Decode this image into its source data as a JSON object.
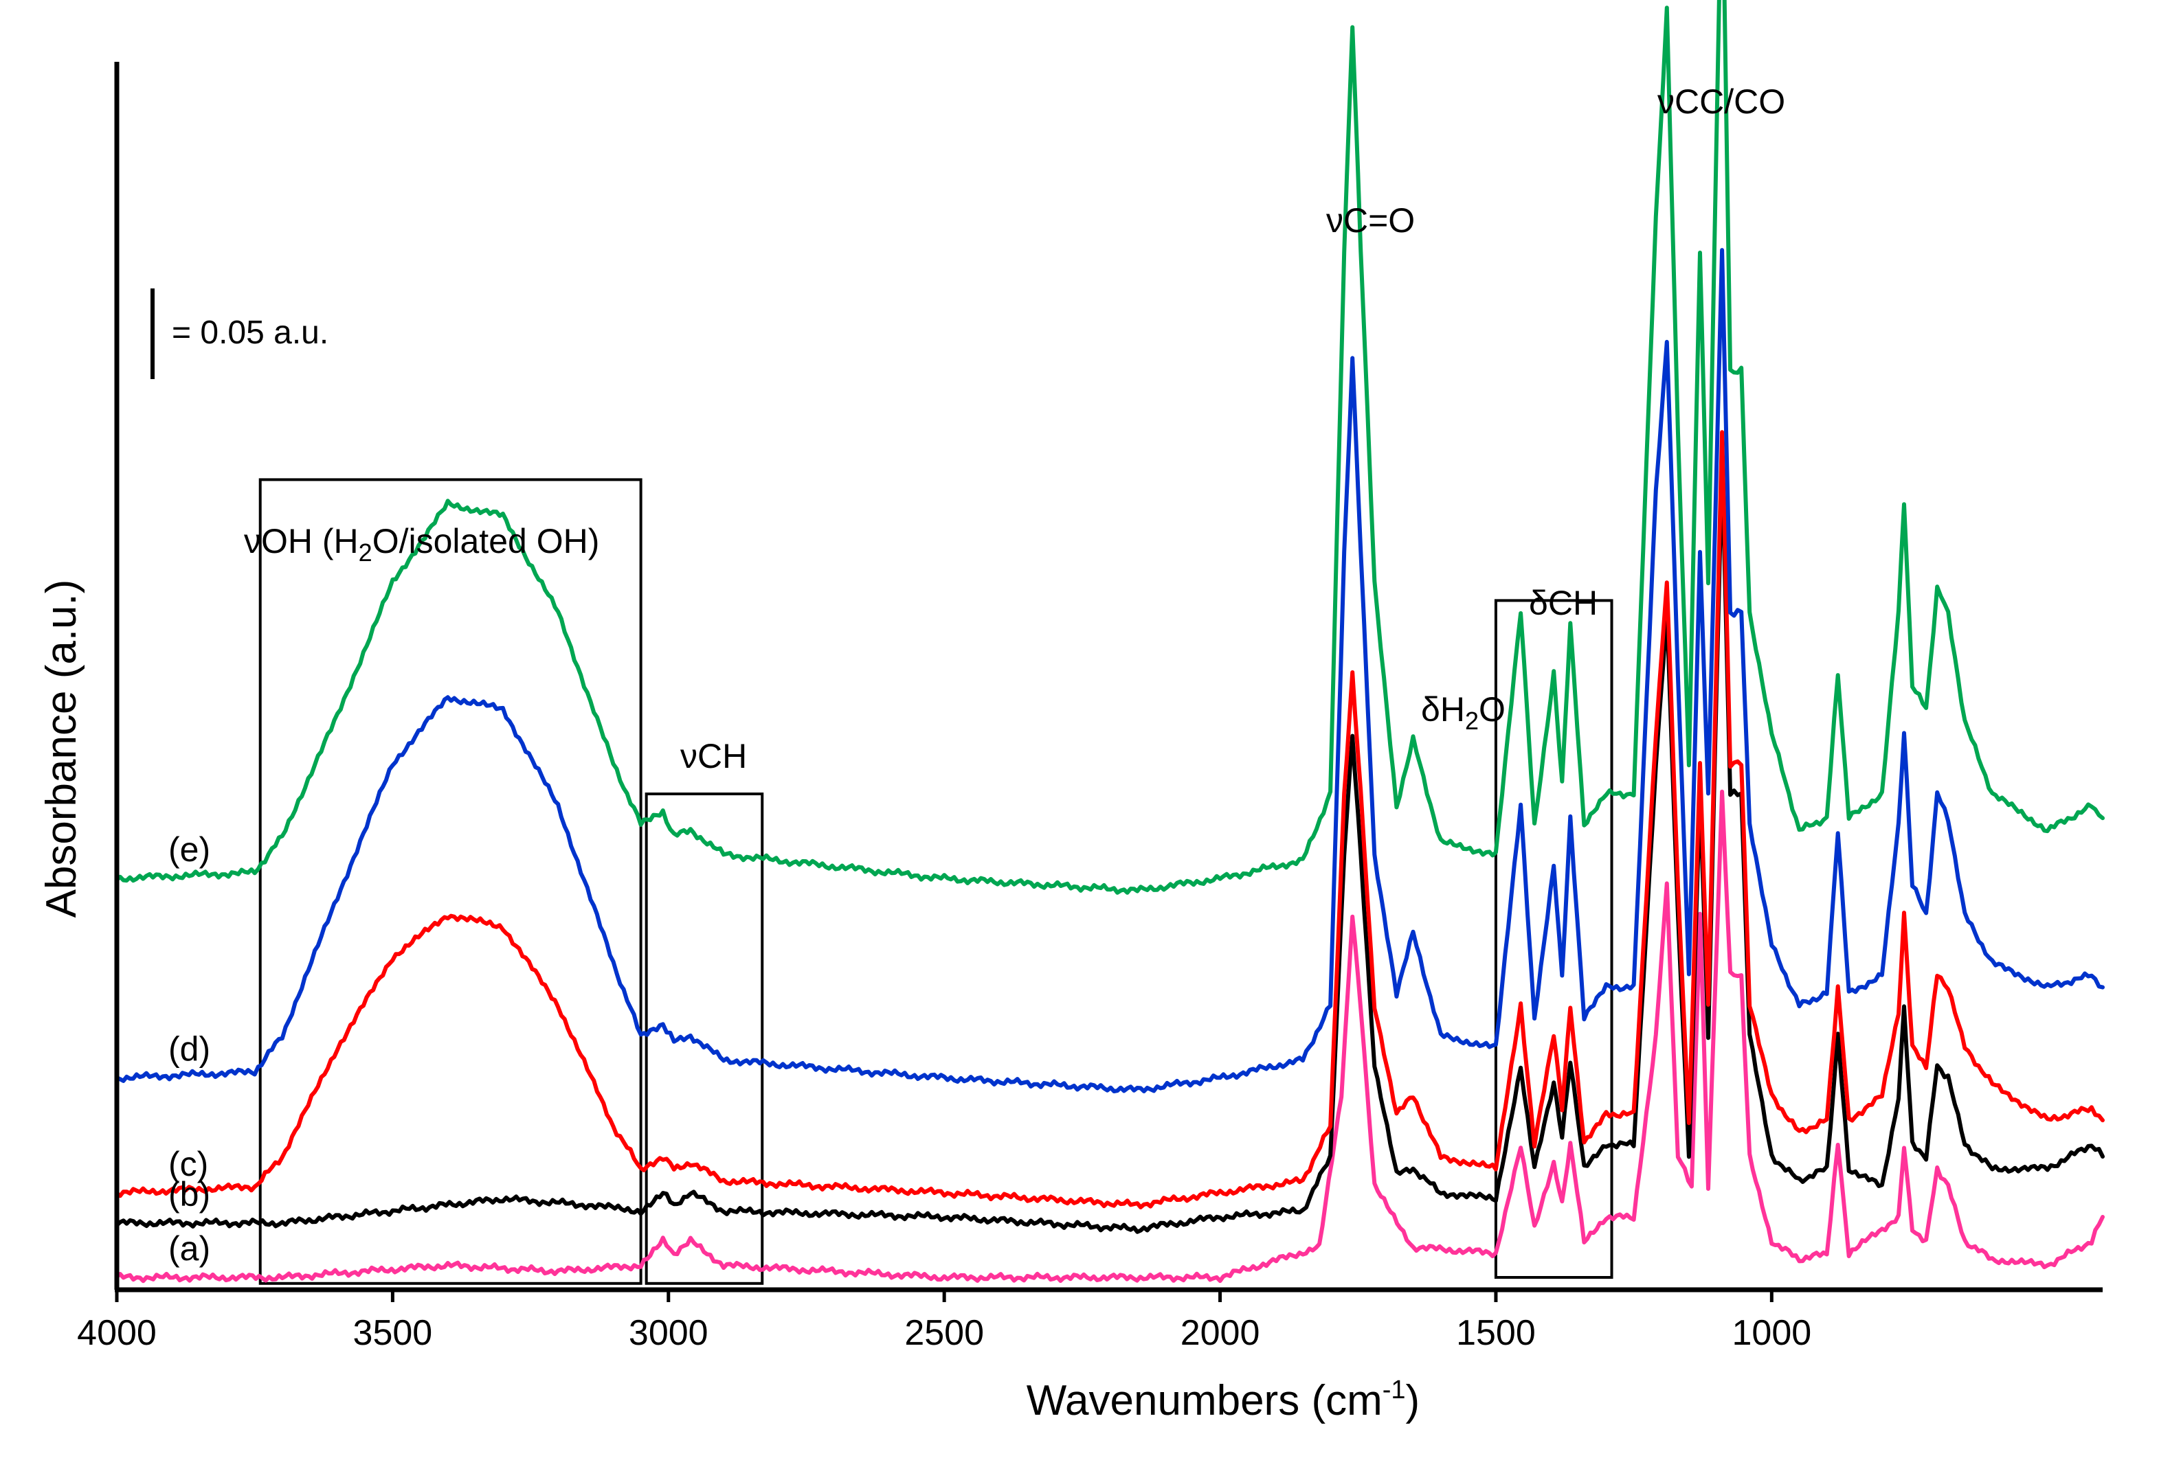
{
  "chart_data": {
    "type": "line",
    "title": "",
    "xlabel": "Wavenumbers",
    "xlabel_unit": "(cm",
    "xlabel_unit_sup": "-1",
    "xlabel_unit_close": ")",
    "ylabel": "Absorbance (a.u.)",
    "xlim": [
      4000,
      400
    ],
    "x_ticks": [
      4000,
      3500,
      3000,
      2500,
      2000,
      1500,
      1000
    ],
    "x_tick_labels": [
      "4000",
      "3500",
      "3000",
      "2500",
      "2000",
      "1500",
      "1000"
    ],
    "scale_bar": {
      "label": "= 0.05 a.u.",
      "value": 0.05
    },
    "series": [
      {
        "name": "(a)",
        "color": "#ff3399",
        "baseline": 0.0,
        "points": [
          [
            4000,
            0.0
          ],
          [
            3700,
            0.0
          ],
          [
            3400,
            0.002
          ],
          [
            3200,
            0.001
          ],
          [
            3050,
            0.002
          ],
          [
            3010,
            0.006
          ],
          [
            2990,
            0.004
          ],
          [
            2960,
            0.006
          ],
          [
            2900,
            0.002
          ],
          [
            2500,
            0.0
          ],
          [
            2000,
            0.0
          ],
          [
            1820,
            0.005
          ],
          [
            1780,
            0.03
          ],
          [
            1760,
            0.06
          ],
          [
            1745,
            0.045
          ],
          [
            1720,
            0.015
          ],
          [
            1650,
            0.005
          ],
          [
            1500,
            0.004
          ],
          [
            1455,
            0.022
          ],
          [
            1430,
            0.008
          ],
          [
            1395,
            0.019
          ],
          [
            1380,
            0.012
          ],
          [
            1365,
            0.022
          ],
          [
            1340,
            0.006
          ],
          [
            1300,
            0.01
          ],
          [
            1250,
            0.01
          ],
          [
            1210,
            0.04
          ],
          [
            1190,
            0.065
          ],
          [
            1170,
            0.02
          ],
          [
            1145,
            0.015
          ],
          [
            1130,
            0.06
          ],
          [
            1115,
            0.015
          ],
          [
            1090,
            0.08
          ],
          [
            1075,
            0.05
          ],
          [
            1055,
            0.05
          ],
          [
            1040,
            0.02
          ],
          [
            1000,
            0.006
          ],
          [
            950,
            0.003
          ],
          [
            900,
            0.004
          ],
          [
            880,
            0.022
          ],
          [
            860,
            0.004
          ],
          [
            770,
            0.01
          ],
          [
            760,
            0.022
          ],
          [
            745,
            0.008
          ],
          [
            720,
            0.006
          ],
          [
            700,
            0.018
          ],
          [
            680,
            0.015
          ],
          [
            650,
            0.006
          ],
          [
            600,
            0.003
          ],
          [
            500,
            0.002
          ],
          [
            420,
            0.006
          ],
          [
            400,
            0.01
          ]
        ]
      },
      {
        "name": "(b)",
        "color": "#000000",
        "baseline": 0.009,
        "points": [
          [
            4000,
            0.009
          ],
          [
            3700,
            0.009
          ],
          [
            3500,
            0.011
          ],
          [
            3300,
            0.013
          ],
          [
            3150,
            0.012
          ],
          [
            3050,
            0.011
          ],
          [
            3010,
            0.014
          ],
          [
            2990,
            0.012
          ],
          [
            2960,
            0.014
          ],
          [
            2900,
            0.011
          ],
          [
            2500,
            0.01
          ],
          [
            2150,
            0.008
          ],
          [
            2000,
            0.01
          ],
          [
            1850,
            0.011
          ],
          [
            1800,
            0.02
          ],
          [
            1775,
            0.07
          ],
          [
            1760,
            0.09
          ],
          [
            1745,
            0.07
          ],
          [
            1720,
            0.035
          ],
          [
            1680,
            0.017
          ],
          [
            1650,
            0.018
          ],
          [
            1600,
            0.014
          ],
          [
            1500,
            0.013
          ],
          [
            1455,
            0.035
          ],
          [
            1430,
            0.018
          ],
          [
            1395,
            0.032
          ],
          [
            1380,
            0.023
          ],
          [
            1365,
            0.036
          ],
          [
            1340,
            0.018
          ],
          [
            1300,
            0.022
          ],
          [
            1250,
            0.022
          ],
          [
            1210,
            0.085
          ],
          [
            1190,
            0.11
          ],
          [
            1170,
            0.06
          ],
          [
            1150,
            0.02
          ],
          [
            1130,
            0.08
          ],
          [
            1115,
            0.04
          ],
          [
            1090,
            0.135
          ],
          [
            1075,
            0.08
          ],
          [
            1055,
            0.08
          ],
          [
            1040,
            0.04
          ],
          [
            1000,
            0.02
          ],
          [
            950,
            0.016
          ],
          [
            900,
            0.018
          ],
          [
            880,
            0.04
          ],
          [
            860,
            0.018
          ],
          [
            800,
            0.015
          ],
          [
            770,
            0.03
          ],
          [
            760,
            0.045
          ],
          [
            745,
            0.022
          ],
          [
            720,
            0.02
          ],
          [
            700,
            0.035
          ],
          [
            680,
            0.033
          ],
          [
            650,
            0.022
          ],
          [
            600,
            0.018
          ],
          [
            500,
            0.018
          ],
          [
            420,
            0.022
          ],
          [
            400,
            0.02
          ]
        ]
      },
      {
        "name": "(c)",
        "color": "#ff0000",
        "baseline": 0.014,
        "points": [
          [
            4000,
            0.014
          ],
          [
            3750,
            0.015
          ],
          [
            3700,
            0.02
          ],
          [
            3600,
            0.038
          ],
          [
            3500,
            0.053
          ],
          [
            3400,
            0.06
          ],
          [
            3300,
            0.058
          ],
          [
            3200,
            0.045
          ],
          [
            3100,
            0.025
          ],
          [
            3050,
            0.018
          ],
          [
            3010,
            0.02
          ],
          [
            2990,
            0.018
          ],
          [
            2960,
            0.019
          ],
          [
            2900,
            0.016
          ],
          [
            2500,
            0.014
          ],
          [
            2150,
            0.012
          ],
          [
            2000,
            0.014
          ],
          [
            1850,
            0.016
          ],
          [
            1800,
            0.025
          ],
          [
            1775,
            0.08
          ],
          [
            1760,
            0.1
          ],
          [
            1745,
            0.08
          ],
          [
            1720,
            0.045
          ],
          [
            1680,
            0.027
          ],
          [
            1650,
            0.03
          ],
          [
            1600,
            0.02
          ],
          [
            1500,
            0.018
          ],
          [
            1455,
            0.045
          ],
          [
            1430,
            0.022
          ],
          [
            1395,
            0.04
          ],
          [
            1380,
            0.028
          ],
          [
            1365,
            0.045
          ],
          [
            1340,
            0.022
          ],
          [
            1300,
            0.027
          ],
          [
            1250,
            0.027
          ],
          [
            1210,
            0.09
          ],
          [
            1190,
            0.115
          ],
          [
            1170,
            0.065
          ],
          [
            1150,
            0.025
          ],
          [
            1130,
            0.085
          ],
          [
            1115,
            0.045
          ],
          [
            1090,
            0.14
          ],
          [
            1075,
            0.085
          ],
          [
            1055,
            0.085
          ],
          [
            1040,
            0.045
          ],
          [
            1000,
            0.03
          ],
          [
            950,
            0.024
          ],
          [
            900,
            0.026
          ],
          [
            880,
            0.048
          ],
          [
            860,
            0.026
          ],
          [
            800,
            0.03
          ],
          [
            770,
            0.044
          ],
          [
            760,
            0.06
          ],
          [
            745,
            0.038
          ],
          [
            720,
            0.035
          ],
          [
            700,
            0.05
          ],
          [
            680,
            0.048
          ],
          [
            650,
            0.038
          ],
          [
            600,
            0.032
          ],
          [
            500,
            0.026
          ],
          [
            420,
            0.028
          ],
          [
            400,
            0.026
          ]
        ]
      },
      {
        "name": "(d)",
        "color": "#0033cc",
        "baseline": 0.033,
        "points": [
          [
            4000,
            0.033
          ],
          [
            3750,
            0.034
          ],
          [
            3700,
            0.04
          ],
          [
            3600,
            0.063
          ],
          [
            3500,
            0.085
          ],
          [
            3400,
            0.096
          ],
          [
            3300,
            0.094
          ],
          [
            3200,
            0.078
          ],
          [
            3100,
            0.052
          ],
          [
            3050,
            0.04
          ],
          [
            3010,
            0.042
          ],
          [
            2990,
            0.039
          ],
          [
            2960,
            0.04
          ],
          [
            2900,
            0.036
          ],
          [
            2500,
            0.033
          ],
          [
            2150,
            0.031
          ],
          [
            2000,
            0.033
          ],
          [
            1850,
            0.036
          ],
          [
            1800,
            0.045
          ],
          [
            1775,
            0.12
          ],
          [
            1760,
            0.152
          ],
          [
            1745,
            0.12
          ],
          [
            1720,
            0.07
          ],
          [
            1680,
            0.047
          ],
          [
            1650,
            0.057
          ],
          [
            1600,
            0.04
          ],
          [
            1500,
            0.038
          ],
          [
            1455,
            0.078
          ],
          [
            1430,
            0.043
          ],
          [
            1395,
            0.068
          ],
          [
            1380,
            0.05
          ],
          [
            1365,
            0.076
          ],
          [
            1340,
            0.043
          ],
          [
            1300,
            0.048
          ],
          [
            1250,
            0.048
          ],
          [
            1210,
            0.13
          ],
          [
            1190,
            0.155
          ],
          [
            1170,
            0.1
          ],
          [
            1150,
            0.05
          ],
          [
            1130,
            0.12
          ],
          [
            1115,
            0.08
          ],
          [
            1090,
            0.17
          ],
          [
            1075,
            0.11
          ],
          [
            1055,
            0.11
          ],
          [
            1040,
            0.075
          ],
          [
            1000,
            0.055
          ],
          [
            950,
            0.045
          ],
          [
            900,
            0.047
          ],
          [
            880,
            0.074
          ],
          [
            860,
            0.047
          ],
          [
            800,
            0.05
          ],
          [
            770,
            0.075
          ],
          [
            760,
            0.09
          ],
          [
            745,
            0.065
          ],
          [
            720,
            0.06
          ],
          [
            700,
            0.08
          ],
          [
            680,
            0.076
          ],
          [
            650,
            0.06
          ],
          [
            600,
            0.052
          ],
          [
            500,
            0.048
          ],
          [
            420,
            0.05
          ],
          [
            400,
            0.048
          ]
        ]
      },
      {
        "name": "(e)",
        "color": "#00a651",
        "baseline": 0.066,
        "points": [
          [
            4000,
            0.066
          ],
          [
            3750,
            0.067
          ],
          [
            3700,
            0.073
          ],
          [
            3600,
            0.093
          ],
          [
            3500,
            0.115
          ],
          [
            3400,
            0.128
          ],
          [
            3300,
            0.126
          ],
          [
            3200,
            0.11
          ],
          [
            3100,
            0.085
          ],
          [
            3050,
            0.075
          ],
          [
            3010,
            0.077
          ],
          [
            2990,
            0.073
          ],
          [
            2960,
            0.074
          ],
          [
            2900,
            0.07
          ],
          [
            2500,
            0.066
          ],
          [
            2150,
            0.064
          ],
          [
            2000,
            0.066
          ],
          [
            1850,
            0.069
          ],
          [
            1800,
            0.08
          ],
          [
            1775,
            0.17
          ],
          [
            1760,
            0.207
          ],
          [
            1745,
            0.17
          ],
          [
            1720,
            0.115
          ],
          [
            1680,
            0.078
          ],
          [
            1650,
            0.089
          ],
          [
            1600,
            0.072
          ],
          [
            1500,
            0.07
          ],
          [
            1455,
            0.11
          ],
          [
            1430,
            0.075
          ],
          [
            1395,
            0.1
          ],
          [
            1380,
            0.082
          ],
          [
            1365,
            0.108
          ],
          [
            1340,
            0.075
          ],
          [
            1300,
            0.08
          ],
          [
            1250,
            0.08
          ],
          [
            1210,
            0.175
          ],
          [
            1190,
            0.21
          ],
          [
            1170,
            0.14
          ],
          [
            1150,
            0.085
          ],
          [
            1130,
            0.17
          ],
          [
            1115,
            0.115
          ],
          [
            1090,
            0.238
          ],
          [
            1075,
            0.15
          ],
          [
            1055,
            0.15
          ],
          [
            1040,
            0.11
          ],
          [
            1000,
            0.09
          ],
          [
            950,
            0.074
          ],
          [
            900,
            0.076
          ],
          [
            880,
            0.1
          ],
          [
            860,
            0.076
          ],
          [
            800,
            0.08
          ],
          [
            770,
            0.11
          ],
          [
            760,
            0.128
          ],
          [
            745,
            0.098
          ],
          [
            720,
            0.094
          ],
          [
            700,
            0.114
          ],
          [
            680,
            0.11
          ],
          [
            650,
            0.092
          ],
          [
            600,
            0.08
          ],
          [
            500,
            0.074
          ],
          [
            420,
            0.078
          ],
          [
            400,
            0.076
          ]
        ]
      }
    ],
    "annotations": [
      {
        "text": "νOH (H",
        "sub": "2",
        "tail": "O/isolated OH)"
      },
      {
        "text": "νCH"
      },
      {
        "text": "νC=O"
      },
      {
        "text": "δH",
        "sub": "2",
        "tail": "O"
      },
      {
        "text": "δCH"
      },
      {
        "text": "νCC/CO"
      }
    ],
    "regions": [
      {
        "name": "vOH",
        "x_range": [
          3740,
          3050
        ],
        "y_range": [
          -0.001,
          0.132
        ]
      },
      {
        "name": "vCH",
        "x_range": [
          3040,
          2830
        ],
        "y_range": [
          -0.001,
          0.08
        ]
      },
      {
        "name": "dCH",
        "x_range": [
          1500,
          1290
        ],
        "y_range": [
          0.0,
          0.112
        ]
      }
    ]
  }
}
